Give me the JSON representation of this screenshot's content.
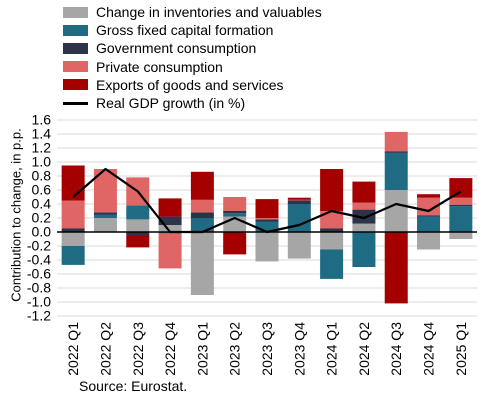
{
  "chart_data": {
    "type": "bar",
    "stacked": true,
    "ylabel": "Contribution to change, in p.p.",
    "ylim": [
      -1.2,
      1.6
    ],
    "yticks": [
      1.6,
      1.4,
      1.2,
      1.0,
      0.8,
      0.6,
      0.4,
      0.2,
      0.0,
      -0.2,
      -0.4,
      -0.6,
      -0.8,
      -1.0,
      -1.2
    ],
    "ytick_labels": [
      "1.6",
      "1.4",
      "1.2",
      "1.0",
      "0.8",
      "0.6",
      "0.4",
      "0.2",
      "0.0",
      "-0.2",
      "-0.4",
      "-0.6",
      "-0.8",
      "-1.0",
      "-1.2"
    ],
    "categories": [
      "2022 Q1",
      "2022 Q2",
      "2022 Q3",
      "2022 Q4",
      "2023 Q1",
      "2023 Q2",
      "2023 Q3",
      "2023 Q4",
      "2024 Q1",
      "2024 Q2",
      "2024 Q3",
      "2024 Q4",
      "2025 Q1"
    ],
    "grid": true,
    "legend_position": "top-left",
    "series": [
      {
        "name": "Change in inventories and valuables",
        "kind": "bar",
        "color": "#a6a6a6",
        "values": [
          -0.2,
          0.2,
          0.18,
          0.1,
          -0.9,
          0.22,
          -0.42,
          -0.38,
          -0.25,
          0.12,
          0.6,
          -0.25,
          -0.1
        ]
      },
      {
        "name": "Gross fixed capital formation",
        "kind": "bar",
        "color": "#1f6b84",
        "values": [
          -0.27,
          0.05,
          0.2,
          -0.02,
          0.2,
          0.05,
          0.15,
          0.4,
          -0.42,
          -0.5,
          0.53,
          0.22,
          0.37
        ]
      },
      {
        "name": "Government consumption",
        "kind": "bar",
        "color": "#2e3349",
        "values": [
          0.05,
          0.03,
          -0.05,
          0.12,
          0.08,
          0.03,
          0.03,
          0.05,
          0.05,
          0.2,
          0.02,
          0.02,
          0.02
        ]
      },
      {
        "name": "Private consumption",
        "kind": "bar",
        "color": "#e06666",
        "values": [
          0.4,
          0.62,
          0.4,
          -0.5,
          0.18,
          0.2,
          0.02,
          0.01,
          0.25,
          0.1,
          0.28,
          0.25,
          0.1
        ]
      },
      {
        "name": "Exports of goods and services",
        "kind": "bar",
        "color": "#a50000",
        "values": [
          0.5,
          0.0,
          -0.17,
          0.26,
          0.4,
          -0.32,
          0.27,
          0.03,
          0.6,
          0.3,
          -1.02,
          0.05,
          0.28
        ]
      },
      {
        "name": "Real GDP growth (in %)",
        "kind": "line",
        "color": "#000000",
        "values": [
          0.5,
          0.9,
          0.58,
          0.0,
          0.0,
          0.2,
          0.0,
          0.1,
          0.3,
          0.2,
          0.4,
          0.3,
          0.58
        ]
      }
    ]
  },
  "source": "Source: Eurostat."
}
